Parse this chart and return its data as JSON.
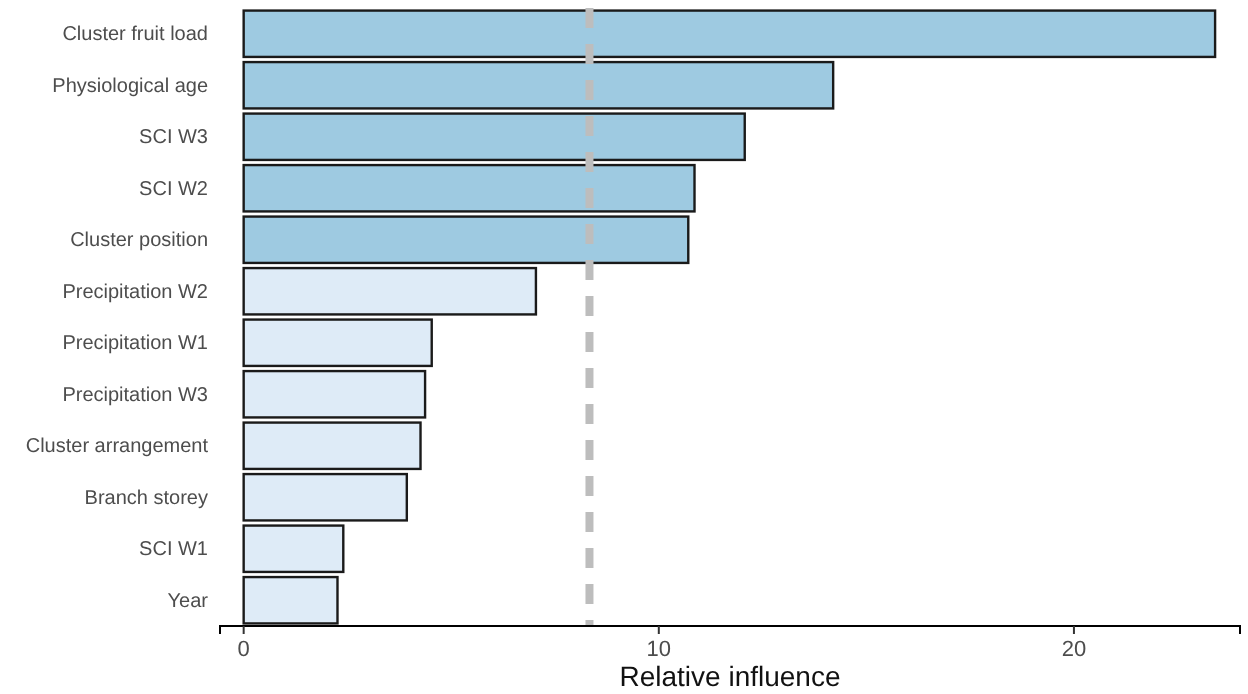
{
  "chart_data": {
    "type": "bar",
    "orientation": "horizontal",
    "xlabel": "Relative influence",
    "categories": [
      "Cluster fruit load",
      "Physiological age",
      "SCI W3",
      "SCI W2",
      "Cluster position",
      "Precipitation W2",
      "Precipitation W1",
      "Precipitation W3",
      "Cluster arrangement",
      "Branch storey",
      "SCI W1",
      "Year"
    ],
    "values": [
      23.4,
      14.2,
      12.07,
      10.86,
      10.71,
      7.04,
      4.53,
      4.37,
      4.26,
      3.93,
      2.4,
      2.26
    ],
    "colors": [
      "#9ecae1",
      "#9ecae1",
      "#9ecae1",
      "#9ecae1",
      "#9ecae1",
      "#deebf7",
      "#deebf7",
      "#deebf7",
      "#deebf7",
      "#deebf7",
      "#deebf7",
      "#deebf7"
    ],
    "xlim": [
      -0.57,
      24
    ],
    "xticks": [
      0,
      10,
      20
    ],
    "grid": false,
    "ref_lines": [
      {
        "axis": "x",
        "value": 8.33,
        "label": null,
        "color": "#bdbdbd",
        "line_style": "dashed"
      }
    ]
  }
}
